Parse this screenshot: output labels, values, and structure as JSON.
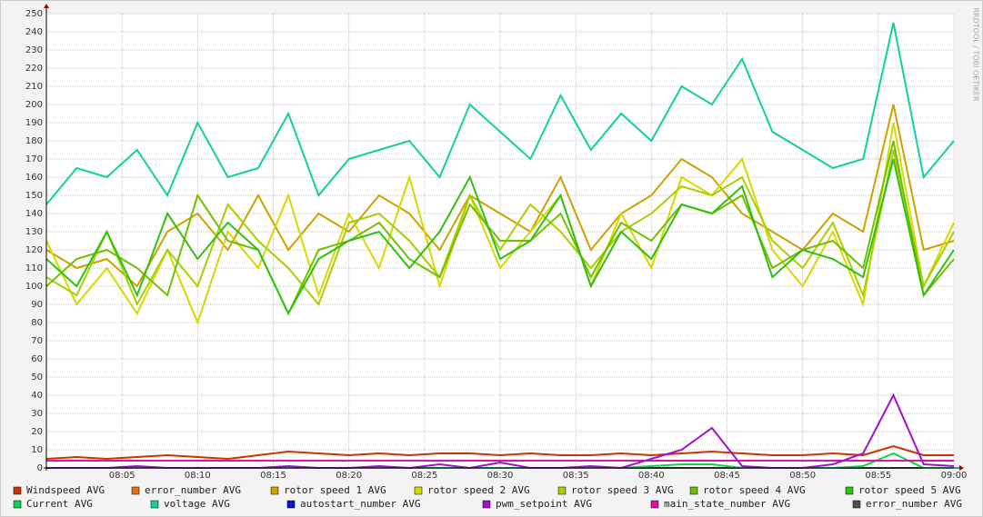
{
  "chart_data": {
    "type": "line",
    "watermark": "RRDTOOL / TOBI OETIKER",
    "x": [
      "08:00",
      "08:02",
      "08:04",
      "08:06",
      "08:08",
      "08:10",
      "08:12",
      "08:14",
      "08:16",
      "08:18",
      "08:20",
      "08:22",
      "08:24",
      "08:26",
      "08:28",
      "08:30",
      "08:32",
      "08:34",
      "08:36",
      "08:38",
      "08:40",
      "08:42",
      "08:44",
      "08:46",
      "08:48",
      "08:50",
      "08:52",
      "08:54",
      "08:56",
      "08:58",
      "09:00"
    ],
    "xlim": [
      "08:00",
      "09:00"
    ],
    "xticks": [
      "08:05",
      "08:10",
      "08:15",
      "08:20",
      "08:25",
      "08:30",
      "08:35",
      "08:40",
      "08:45",
      "08:50",
      "08:55",
      "09:00"
    ],
    "ylim": [
      0,
      250
    ],
    "yticks": [
      0,
      10,
      20,
      30,
      40,
      50,
      60,
      70,
      80,
      90,
      100,
      110,
      120,
      130,
      140,
      150,
      160,
      170,
      180,
      190,
      200,
      210,
      220,
      230,
      240,
      250
    ],
    "grid": true,
    "series": [
      {
        "name": "Windspeed AVG",
        "color": "#cc3300",
        "values": [
          5,
          6,
          5,
          6,
          7,
          6,
          5,
          7,
          9,
          8,
          7,
          8,
          7,
          8,
          8,
          7,
          8,
          7,
          7,
          8,
          7,
          8,
          9,
          8,
          7,
          7,
          8,
          7,
          12,
          7,
          7
        ]
      },
      {
        "name": "error_number AVG",
        "color": "#e07010",
        "values": [
          4,
          4,
          4,
          4,
          4,
          4,
          4,
          4,
          4,
          4,
          4,
          4,
          4,
          4,
          4,
          4,
          4,
          4,
          4,
          4,
          4,
          4,
          4,
          4,
          4,
          4,
          4,
          4,
          4,
          4,
          4
        ]
      },
      {
        "name": "rotor speed 1 AVG",
        "color": "#d0a000",
        "values": [
          120,
          110,
          115,
          100,
          130,
          140,
          120,
          150,
          120,
          140,
          130,
          150,
          140,
          120,
          150,
          140,
          130,
          160,
          120,
          140,
          150,
          170,
          160,
          140,
          130,
          120,
          140,
          130,
          200,
          120,
          125
        ]
      },
      {
        "name": "rotor speed 2 AVG",
        "color": "#d8d800",
        "values": [
          125,
          90,
          110,
          85,
          120,
          80,
          130,
          110,
          150,
          95,
          140,
          110,
          160,
          100,
          150,
          110,
          130,
          150,
          100,
          140,
          110,
          160,
          150,
          170,
          120,
          100,
          130,
          90,
          190,
          100,
          135
        ]
      },
      {
        "name": "rotor speed 3 AVG",
        "color": "#a8d000",
        "values": [
          105,
          95,
          130,
          90,
          120,
          100,
          145,
          125,
          110,
          90,
          135,
          140,
          125,
          105,
          150,
          120,
          145,
          130,
          110,
          130,
          140,
          155,
          150,
          160,
          125,
          110,
          135,
          95,
          175,
          100,
          130
        ]
      },
      {
        "name": "rotor speed 4 AVG",
        "color": "#70c000",
        "values": [
          100,
          115,
          120,
          110,
          95,
          150,
          125,
          120,
          85,
          120,
          125,
          135,
          115,
          105,
          145,
          125,
          125,
          140,
          105,
          135,
          125,
          145,
          140,
          150,
          110,
          120,
          125,
          110,
          180,
          95,
          115
        ]
      },
      {
        "name": "rotor speed 5 AVG",
        "color": "#30c010",
        "values": [
          115,
          100,
          130,
          95,
          140,
          115,
          135,
          120,
          85,
          115,
          125,
          130,
          110,
          130,
          160,
          115,
          125,
          150,
          100,
          130,
          115,
          145,
          140,
          155,
          105,
          120,
          115,
          105,
          170,
          95,
          120
        ]
      },
      {
        "name": "Current AVG",
        "color": "#10d050",
        "values": [
          0,
          0,
          0,
          0,
          0,
          0,
          0,
          0,
          0,
          0,
          0,
          0,
          0,
          0,
          0,
          0,
          0,
          0,
          0,
          0,
          1,
          2,
          2,
          0,
          0,
          0,
          0,
          1,
          8,
          0,
          0
        ]
      },
      {
        "name": "voltage AVG",
        "color": "#10d0a0",
        "values": [
          145,
          165,
          160,
          175,
          150,
          190,
          160,
          165,
          195,
          150,
          170,
          175,
          180,
          160,
          200,
          185,
          170,
          205,
          175,
          195,
          180,
          210,
          200,
          225,
          185,
          175,
          165,
          170,
          245,
          160,
          180
        ]
      },
      {
        "name": "autostart_number AVG",
        "color": "#1010d0",
        "values": [
          0,
          0,
          0,
          0,
          0,
          0,
          0,
          0,
          0,
          0,
          0,
          0,
          0,
          0,
          0,
          0,
          0,
          0,
          0,
          0,
          0,
          0,
          0,
          0,
          0,
          0,
          0,
          0,
          0,
          0,
          0
        ]
      },
      {
        "name": "pwm_setpoint AVG",
        "color": "#a010d0",
        "values": [
          0,
          0,
          0,
          1,
          0,
          0,
          0,
          0,
          1,
          0,
          0,
          1,
          0,
          2,
          0,
          3,
          0,
          0,
          1,
          0,
          5,
          10,
          22,
          1,
          0,
          0,
          2,
          8,
          40,
          2,
          1
        ]
      },
      {
        "name": "main_state_number AVG",
        "color": "#e010a0",
        "values": [
          4,
          4,
          4,
          4,
          4,
          4,
          4,
          4,
          4,
          4,
          4,
          4,
          4,
          4,
          4,
          4,
          4,
          4,
          4,
          4,
          4,
          4,
          4,
          4,
          4,
          4,
          4,
          4,
          4,
          4,
          4
        ]
      },
      {
        "name": "error_number AVG",
        "color": "#505050",
        "values": [
          0,
          0,
          0,
          0,
          0,
          0,
          0,
          0,
          0,
          0,
          0,
          0,
          0,
          0,
          0,
          0,
          0,
          0,
          0,
          0,
          0,
          0,
          0,
          0,
          0,
          0,
          0,
          0,
          0,
          0,
          0
        ]
      }
    ]
  }
}
